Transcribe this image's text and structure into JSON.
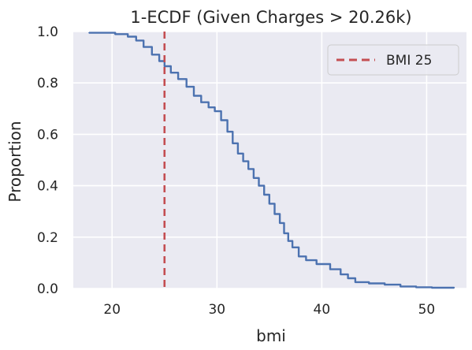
{
  "chart_data": {
    "type": "line",
    "title": "1-ECDF (Given Charges > 20.26k)",
    "xlabel": "bmi",
    "ylabel": "Proportion",
    "xlim": [
      16.3,
      53.8
    ],
    "ylim": [
      0.0,
      1.0
    ],
    "xticks": [
      20,
      30,
      40,
      50
    ],
    "yticks": [
      0.0,
      0.2,
      0.4,
      0.6,
      0.8,
      1.0
    ],
    "xtick_labels": [
      "20",
      "30",
      "40",
      "50"
    ],
    "ytick_labels": [
      "0.0",
      "0.2",
      "0.4",
      "0.6",
      "0.8",
      "1.0"
    ],
    "grid": true,
    "legend_position": "top-right",
    "series": [
      {
        "color": "#4c72b0",
        "x": [
          17.8,
          20.3,
          21.5,
          22.3,
          23.0,
          23.8,
          24.5,
          25.0,
          25.6,
          26.3,
          27.1,
          27.8,
          28.5,
          29.2,
          29.8,
          30.4,
          31.0,
          31.5,
          32.0,
          32.5,
          33.0,
          33.5,
          34.0,
          34.5,
          35.0,
          35.5,
          36.0,
          36.4,
          36.8,
          37.2,
          37.8,
          38.5,
          39.5,
          40.8,
          41.8,
          42.5,
          43.2,
          44.5,
          46.0,
          47.5,
          49.0,
          50.5,
          52.6
        ],
        "y": [
          0.995,
          0.99,
          0.98,
          0.965,
          0.94,
          0.91,
          0.885,
          0.865,
          0.84,
          0.815,
          0.785,
          0.75,
          0.725,
          0.705,
          0.69,
          0.655,
          0.61,
          0.565,
          0.525,
          0.495,
          0.465,
          0.43,
          0.4,
          0.365,
          0.33,
          0.29,
          0.255,
          0.215,
          0.185,
          0.16,
          0.125,
          0.11,
          0.095,
          0.075,
          0.055,
          0.04,
          0.025,
          0.02,
          0.015,
          0.008,
          0.005,
          0.003,
          0.002
        ]
      }
    ],
    "reference_lines": [
      {
        "name": "BMI 25",
        "x": 25.0,
        "color": "#c44e52",
        "style": "dashed"
      }
    ]
  }
}
